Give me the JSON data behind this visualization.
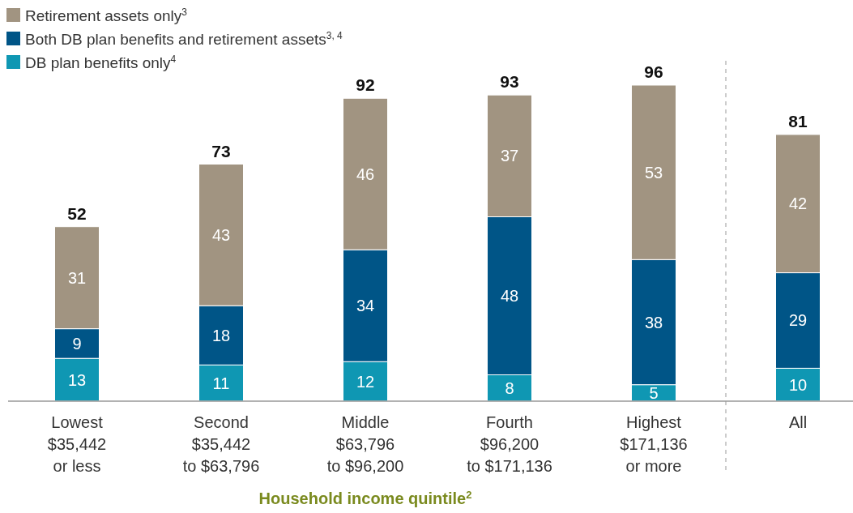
{
  "chart_data": {
    "type": "bar",
    "stacked": true,
    "xlabel": "Household income quintile$^{2}$",
    "categories": [
      "Lowest\n$35,442\nor less",
      "Second\n$35,442\nto $63,796",
      "Middle\n$63,796\nto $96,200",
      "Fourth\n$96,200\nto $171,136",
      "Highest\n$171,136\nor more",
      "All"
    ],
    "series": [
      {
        "name": "DB plan benefits only$^{4}$",
        "color": "#0f97b3",
        "values": [
          13,
          11,
          12,
          8,
          5,
          10
        ]
      },
      {
        "name": "Both DB plan benefits and retirement assets$^{3, 4}$",
        "color": "#005587",
        "values": [
          9,
          18,
          34,
          48,
          38,
          29
        ]
      },
      {
        "name": "Retirement assets only$^{3}$",
        "color": "#a19481",
        "values": [
          31,
          43,
          46,
          37,
          53,
          42
        ]
      }
    ],
    "data_labels": true,
    "totals": [
      "52",
      "73",
      "92",
      "93",
      "96",
      "81"
    ],
    "legend": "top left"
  }
}
